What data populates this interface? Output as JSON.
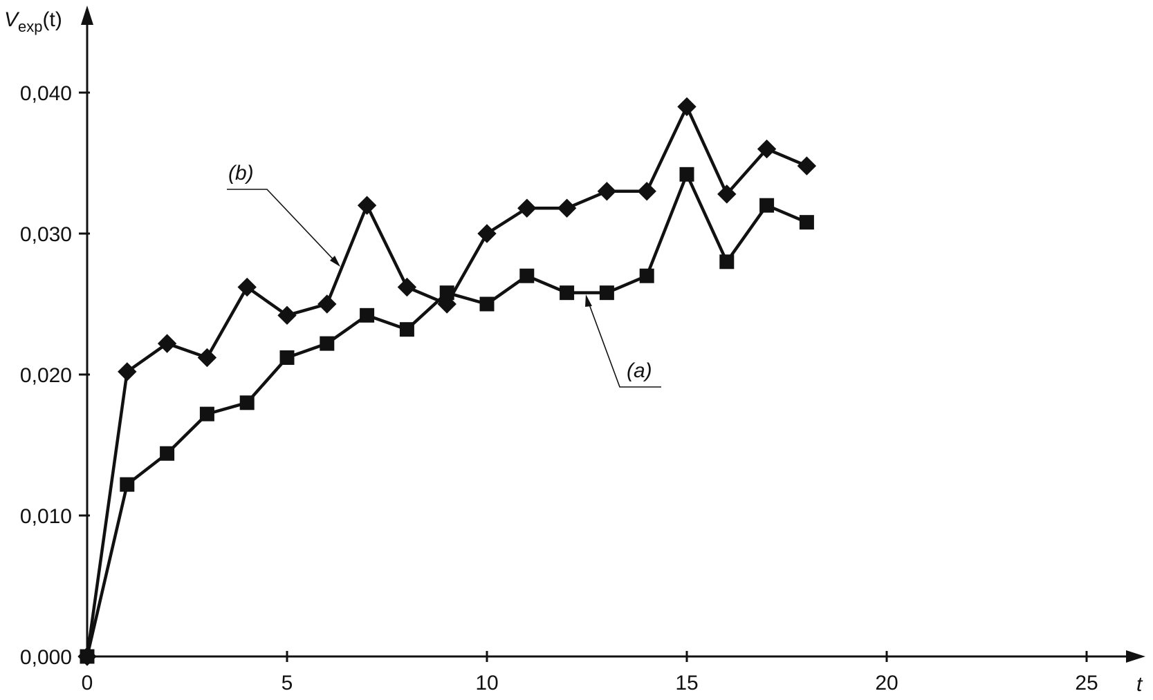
{
  "chart_data": {
    "type": "line",
    "ylabel": "V",
    "ylabel_subscript": "exp",
    "ylabel_arg": "(t)",
    "xlabel": "t",
    "xlim": [
      0,
      26
    ],
    "ylim": [
      0,
      0.045
    ],
    "x_ticks": [
      0,
      5,
      10,
      15,
      20,
      25
    ],
    "x_tick_labels": [
      "0",
      "5",
      "10",
      "15",
      "20",
      "25"
    ],
    "y_ticks": [
      0,
      0.01,
      0.02,
      0.03,
      0.04
    ],
    "y_tick_labels": [
      "0,000",
      "0,010",
      "0,020",
      "0,030",
      "0,040"
    ],
    "grid": false,
    "legend": "none",
    "series": [
      {
        "name": "(a)",
        "marker": "square",
        "x": [
          0,
          1,
          2,
          3,
          4,
          5,
          6,
          7,
          8,
          9,
          10,
          11,
          12,
          13,
          14,
          15,
          16,
          17,
          18
        ],
        "values": [
          0.0,
          0.0122,
          0.0144,
          0.0172,
          0.018,
          0.0212,
          0.0222,
          0.0242,
          0.0232,
          0.0258,
          0.025,
          0.027,
          0.0258,
          0.0258,
          0.027,
          0.0342,
          0.028,
          0.032,
          0.0308
        ]
      },
      {
        "name": "(b)",
        "marker": "diamond",
        "x": [
          0,
          1,
          2,
          3,
          4,
          5,
          6,
          7,
          8,
          9,
          10,
          11,
          12,
          13,
          14,
          15,
          16,
          17,
          18
        ],
        "values": [
          0.0,
          0.0202,
          0.0222,
          0.0212,
          0.0262,
          0.0242,
          0.025,
          0.032,
          0.0262,
          0.025,
          0.03,
          0.0318,
          0.0318,
          0.033,
          0.033,
          0.039,
          0.0328,
          0.036,
          0.0348
        ]
      }
    ],
    "annotations": [
      {
        "text": "(b)",
        "series": "(b)"
      },
      {
        "text": "(a)",
        "series": "(a)"
      }
    ]
  }
}
